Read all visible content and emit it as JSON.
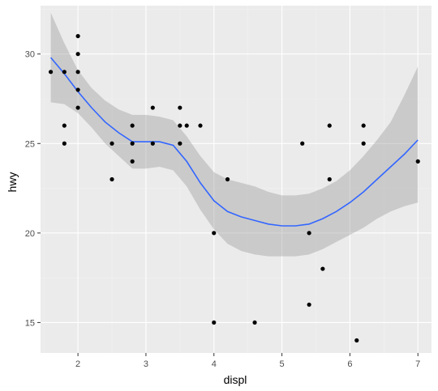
{
  "chart_data": {
    "type": "scatter",
    "xlabel": "displ",
    "ylabel": "hwy",
    "xlim": [
      1.45,
      7.2
    ],
    "ylim": [
      13.3,
      32.7
    ],
    "x_ticks": [
      2,
      3,
      4,
      5,
      6,
      7
    ],
    "y_ticks": [
      15,
      20,
      25,
      30
    ],
    "grid": true,
    "legend": "none",
    "points": [
      {
        "x": 1.6,
        "y": 29
      },
      {
        "x": 1.8,
        "y": 29
      },
      {
        "x": 1.8,
        "y": 26
      },
      {
        "x": 1.8,
        "y": 25
      },
      {
        "x": 2.0,
        "y": 31
      },
      {
        "x": 2.0,
        "y": 30
      },
      {
        "x": 2.0,
        "y": 29
      },
      {
        "x": 2.0,
        "y": 28
      },
      {
        "x": 2.0,
        "y": 27
      },
      {
        "x": 2.5,
        "y": 25
      },
      {
        "x": 2.5,
        "y": 23
      },
      {
        "x": 2.8,
        "y": 26
      },
      {
        "x": 2.8,
        "y": 25
      },
      {
        "x": 2.8,
        "y": 24
      },
      {
        "x": 3.1,
        "y": 27
      },
      {
        "x": 3.1,
        "y": 25
      },
      {
        "x": 3.5,
        "y": 27
      },
      {
        "x": 3.5,
        "y": 26
      },
      {
        "x": 3.5,
        "y": 25
      },
      {
        "x": 3.6,
        "y": 26
      },
      {
        "x": 3.8,
        "y": 26
      },
      {
        "x": 4.0,
        "y": 20
      },
      {
        "x": 4.0,
        "y": 15
      },
      {
        "x": 4.2,
        "y": 23
      },
      {
        "x": 4.6,
        "y": 15
      },
      {
        "x": 5.3,
        "y": 25
      },
      {
        "x": 5.4,
        "y": 20
      },
      {
        "x": 5.4,
        "y": 16
      },
      {
        "x": 5.6,
        "y": 18
      },
      {
        "x": 5.7,
        "y": 26
      },
      {
        "x": 5.7,
        "y": 23
      },
      {
        "x": 6.1,
        "y": 14
      },
      {
        "x": 6.2,
        "y": 26
      },
      {
        "x": 6.2,
        "y": 25
      },
      {
        "x": 7.0,
        "y": 24
      }
    ],
    "smooth": {
      "color": "#3366ff",
      "ribbon_color": "#999999",
      "x": [
        1.6,
        1.8,
        2.0,
        2.2,
        2.4,
        2.6,
        2.8,
        3.0,
        3.2,
        3.4,
        3.6,
        3.8,
        4.0,
        4.2,
        4.4,
        4.6,
        4.8,
        5.0,
        5.2,
        5.4,
        5.6,
        5.8,
        6.0,
        6.2,
        6.4,
        6.6,
        6.8,
        7.0
      ],
      "y": [
        29.8,
        28.9,
        27.9,
        27.0,
        26.2,
        25.6,
        25.1,
        25.1,
        25.1,
        24.9,
        24.0,
        22.8,
        21.8,
        21.2,
        20.9,
        20.7,
        20.5,
        20.4,
        20.4,
        20.5,
        20.8,
        21.2,
        21.7,
        22.3,
        23.0,
        23.7,
        24.4,
        25.2
      ],
      "lower": [
        27.3,
        27.2,
        26.7,
        25.9,
        25.0,
        24.3,
        23.6,
        23.6,
        23.7,
        23.5,
        22.6,
        21.3,
        20.2,
        19.4,
        19.0,
        18.8,
        18.7,
        18.7,
        18.7,
        18.8,
        19.1,
        19.5,
        19.9,
        20.3,
        20.8,
        21.2,
        21.5,
        21.7
      ],
      "upper": [
        32.3,
        30.6,
        29.1,
        28.1,
        27.4,
        26.9,
        26.6,
        26.6,
        26.5,
        26.3,
        25.4,
        24.3,
        23.4,
        23.0,
        22.8,
        22.6,
        22.3,
        22.1,
        22.1,
        22.2,
        22.5,
        22.9,
        23.5,
        24.3,
        25.2,
        26.2,
        27.7,
        29.3
      ]
    }
  }
}
